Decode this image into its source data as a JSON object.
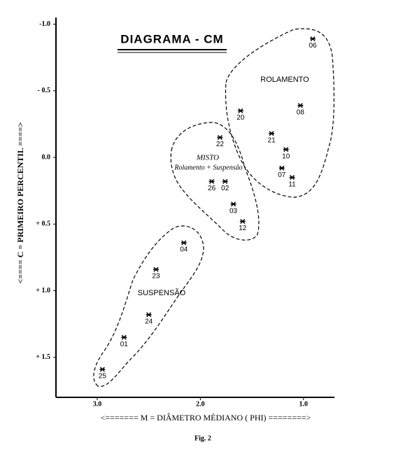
{
  "chart_data": {
    "type": "scatter",
    "title": "DIAGRAMA - CM",
    "x_label": "<======= M = DIÂMETRO MÉDIANO ( PHI) ========>",
    "y_label": "<==== C = PRIMEIRO PERCENTIL ====>",
    "caption": "Fig. 2",
    "annotations": [
      "ROLAMENTO",
      "MISTO",
      "Rolamento + Suspensão",
      "SUSPENSÃO"
    ],
    "labels": [
      "06",
      "08",
      "20",
      "21",
      "10",
      "07",
      "11",
      "22",
      "26",
      "02",
      "03",
      "12",
      "04",
      "23",
      "24",
      "01",
      "25"
    ],
    "x": [
      0.91,
      1.03,
      1.61,
      1.31,
      1.17,
      1.21,
      1.11,
      1.81,
      1.89,
      1.76,
      1.68,
      1.59,
      2.16,
      2.43,
      2.5,
      2.74,
      2.95
    ],
    "values": [
      -0.89,
      -0.39,
      -0.35,
      -0.18,
      -0.06,
      0.08,
      0.15,
      -0.15,
      0.18,
      0.18,
      0.35,
      0.48,
      0.64,
      0.84,
      1.18,
      1.35,
      1.59
    ],
    "color": "#000000",
    "xlim": [
      3.4,
      0.7
    ],
    "xticks": [
      {
        "value": 3,
        "label": "3.0"
      },
      {
        "value": 2,
        "label": "2.0"
      },
      {
        "value": 1,
        "label": "1.0"
      }
    ],
    "ylim": [
      -1.05,
      1.8
    ],
    "yticks": [
      {
        "value": -1,
        "label": "-1.0"
      },
      {
        "value": -0.5,
        "label": "- 0.5"
      },
      {
        "value": 0,
        "label": "0.0"
      },
      {
        "value": 0.5,
        "label": "+ 0.5"
      },
      {
        "value": 1,
        "label": "+ 1.0"
      },
      {
        "value": 1.5,
        "label": "+ 1.5"
      }
    ]
  }
}
